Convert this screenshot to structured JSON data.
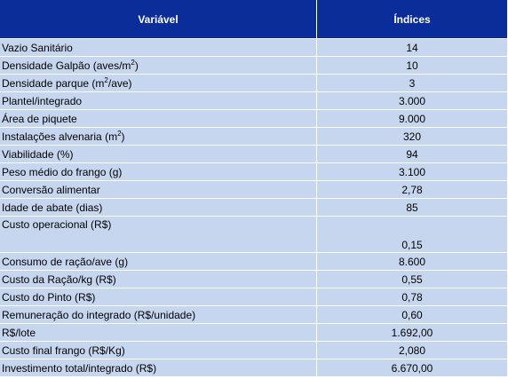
{
  "header": {
    "variable": "Variável",
    "index": "Índices"
  },
  "rows": [
    {
      "name": "Vazio Sanitário",
      "value": "14"
    },
    {
      "name_parts": [
        "Densidade Galpão (aves/m",
        "2",
        ")"
      ],
      "value": "10"
    },
    {
      "name_parts": [
        "Densidade parque (m",
        "2",
        "/ave)"
      ],
      "value": "3"
    },
    {
      "name": "Plantel/integrado",
      "value": "3.000"
    },
    {
      "name": "Área de piquete",
      "value": "9.000"
    },
    {
      "name_parts": [
        "Instalações alvenaria (m",
        "2",
        ")"
      ],
      "value": "320"
    },
    {
      "name": "Viabilidade (%)",
      "value": "94"
    },
    {
      "name": "Peso médio do frango (g)",
      "value": "3.100"
    },
    {
      "name": "Conversão alimentar",
      "value": "2,78"
    },
    {
      "name": "Idade de abate (dias)",
      "value": "85"
    },
    {
      "name": "Custo operacional (R$)",
      "value": "0,15"
    },
    {
      "name": "Consumo de ração/ave (g)",
      "value": "8.600"
    },
    {
      "name": "Custo da Ração/kg (R$)",
      "value": "0,55"
    },
    {
      "name": "Custo do Pinto (R$)",
      "value": "0,78"
    },
    {
      "name": "Remuneração do integrado (R$/unidade)",
      "value": "0,60"
    },
    {
      "name": "R$/lote",
      "value": "1.692,00"
    },
    {
      "name": "Custo final frango (R$/Kg)",
      "value": "2,080"
    },
    {
      "name": "Investimento total/integrado (R$)",
      "value": "6.670,00"
    }
  ],
  "colors": {
    "header_bg": "#0a2d9a",
    "header_text": "#ffffff",
    "cell_bg": "#c7d6ef",
    "border": "#ffffff"
  }
}
